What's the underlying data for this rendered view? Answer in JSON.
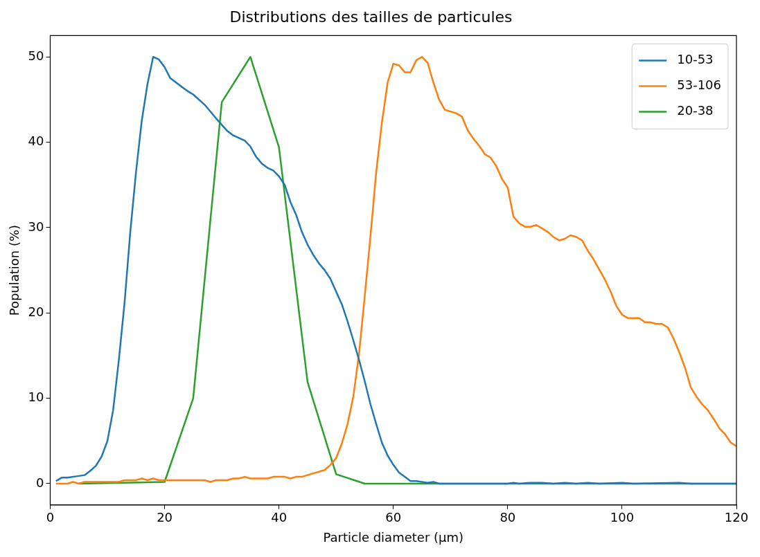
{
  "chart_data": {
    "type": "line",
    "title": "Distributions des tailles de particules",
    "xlabel": "Particle diameter (µm)",
    "ylabel": "Population (%)",
    "xlim": [
      0,
      120
    ],
    "xticks": [
      0,
      20,
      40,
      60,
      80,
      100,
      120
    ],
    "ylim": [
      -2.5,
      52.5
    ],
    "yticks": [
      0,
      10,
      20,
      30,
      40,
      50
    ],
    "grid": false,
    "legend": "top right",
    "marker": "none",
    "line_style": "solid",
    "series": [
      {
        "name": "10-53",
        "color": "#1f77b4",
        "x": [
          1,
          2,
          3,
          5,
          6,
          7,
          8,
          9,
          10,
          11,
          12,
          13,
          14,
          15,
          16,
          17,
          18,
          19,
          20,
          21,
          23,
          24,
          25,
          27,
          29,
          31,
          32,
          34,
          35,
          36,
          37,
          38,
          39,
          40,
          41,
          42,
          43,
          44,
          45,
          46,
          47,
          48,
          49,
          50,
          51,
          52,
          53,
          54,
          55,
          56,
          57,
          58,
          59,
          60,
          61,
          62,
          63,
          64,
          65,
          66,
          67,
          68,
          70,
          80,
          81,
          82,
          84,
          86,
          88,
          90,
          92,
          94,
          96,
          100,
          102,
          110,
          112,
          120
        ],
        "values": [
          0.3,
          0.7,
          0.7,
          0.9,
          1.0,
          1.5,
          2.1,
          3.2,
          5.0,
          8.6,
          14.5,
          21.2,
          29.5,
          36.5,
          42.5,
          46.8,
          50.0,
          49.7,
          48.8,
          47.5,
          46.5,
          46.0,
          45.6,
          44.4,
          42.8,
          41.3,
          40.8,
          40.2,
          39.5,
          38.3,
          37.5,
          37.0,
          36.7,
          36.0,
          35.0,
          33.0,
          31.5,
          29.5,
          28.0,
          26.8,
          25.8,
          25.0,
          24.0,
          22.5,
          21.0,
          19.0,
          16.8,
          14.5,
          12.0,
          9.3,
          7.0,
          4.8,
          3.3,
          2.2,
          1.3,
          0.8,
          0.3,
          0.3,
          0.2,
          0.1,
          0.2,
          0.0,
          0.0,
          0.0,
          0.1,
          0.0,
          0.1,
          0.1,
          0.0,
          0.1,
          0.0,
          0.1,
          0.0,
          0.1,
          0.0,
          0.1,
          0.0,
          0.0
        ]
      },
      {
        "name": "53-106",
        "color": "#ff7f0e",
        "x": [
          1,
          3,
          4,
          5,
          6,
          12,
          13,
          15,
          16,
          17,
          18,
          19,
          27,
          28,
          29,
          31,
          32,
          33,
          34,
          35,
          38,
          39,
          41,
          42,
          43,
          44,
          46,
          48,
          49,
          50,
          51,
          52,
          53,
          54,
          55,
          56,
          57,
          58,
          59,
          60,
          61,
          62,
          63,
          64,
          65,
          66,
          67,
          68,
          69,
          71,
          72,
          73,
          74,
          75,
          76,
          77,
          78,
          79,
          80,
          81,
          82,
          83,
          84,
          85,
          86,
          87,
          88,
          89,
          90,
          91,
          92,
          93,
          94,
          95,
          96,
          97,
          98,
          99,
          100,
          101,
          103,
          104,
          105,
          106,
          107,
          108,
          109,
          110,
          111,
          112,
          113,
          114,
          115,
          116,
          117,
          118,
          119,
          120
        ],
        "values": [
          0,
          0,
          0.2,
          0,
          0.2,
          0.2,
          0.4,
          0.4,
          0.6,
          0.4,
          0.6,
          0.4,
          0.4,
          0.2,
          0.4,
          0.4,
          0.6,
          0.6,
          0.8,
          0.6,
          0.6,
          0.8,
          0.8,
          0.6,
          0.8,
          0.8,
          1.2,
          1.6,
          2.2,
          3.0,
          4.7,
          7.0,
          10.2,
          15.2,
          22.0,
          29.0,
          36.5,
          42.3,
          47.0,
          49.2,
          49.0,
          48.2,
          48.2,
          49.6,
          50.0,
          49.3,
          47.0,
          45.0,
          43.8,
          43.4,
          43.0,
          41.4,
          40.4,
          39.6,
          38.6,
          38.2,
          37.2,
          35.7,
          34.7,
          31.3,
          30.5,
          30.1,
          30.1,
          30.3,
          29.9,
          29.5,
          28.9,
          28.5,
          28.7,
          29.1,
          28.9,
          28.5,
          27.3,
          26.3,
          25.1,
          23.9,
          22.5,
          20.8,
          19.8,
          19.4,
          19.4,
          18.9,
          18.9,
          18.7,
          18.7,
          18.3,
          17.0,
          15.4,
          13.6,
          11.3,
          10.2,
          9.3,
          8.6,
          7.6,
          6.5,
          5.8,
          4.8,
          4.4
        ]
      },
      {
        "name": "20-38",
        "color": "#2ca02c",
        "x": [
          5,
          20,
          25,
          30,
          35,
          40,
          45,
          50,
          55,
          120
        ],
        "values": [
          0,
          0.2,
          10,
          44.7,
          50,
          39.4,
          11.9,
          1.1,
          0,
          0
        ]
      }
    ]
  }
}
